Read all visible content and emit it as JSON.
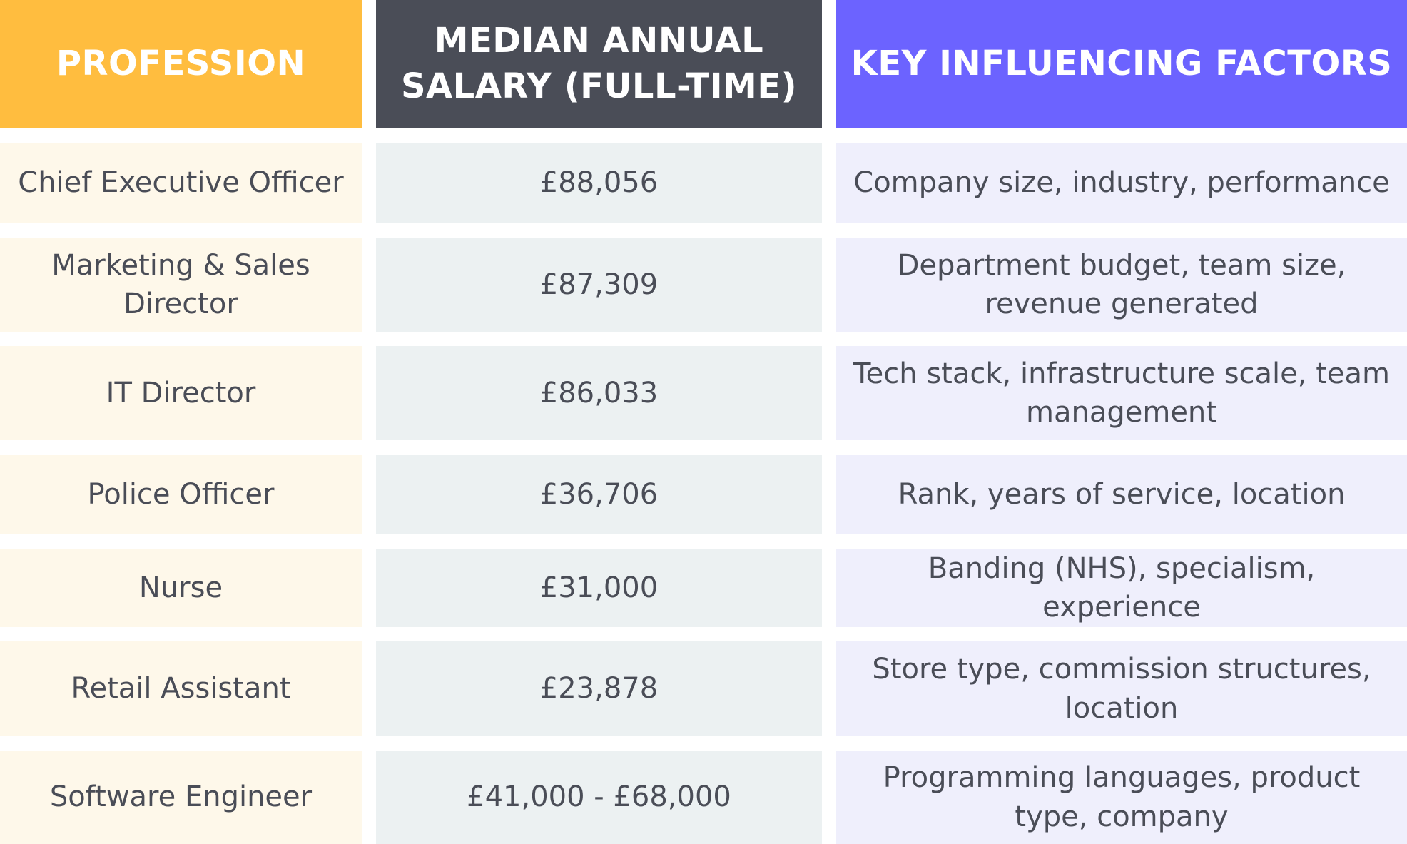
{
  "chart_data": {
    "type": "table",
    "columns": [
      "PROFESSION",
      "MEDIAN ANNUAL SALARY (FULL-TIME)",
      "KEY INFLUENCING FACTORS"
    ],
    "rows": [
      {
        "profession": "Chief Executive Officer",
        "salary": "£88,056",
        "factors": "Company size, industry, performance"
      },
      {
        "profession": "Marketing & Sales Director",
        "salary": "£87,309",
        "factors": "Department budget, team size, revenue generated"
      },
      {
        "profession": "IT Director",
        "salary": "£86,033",
        "factors": "Tech stack, infrastructure scale, team management"
      },
      {
        "profession": "Police Officer",
        "salary": "£36,706",
        "factors": "Rank, years of service, location"
      },
      {
        "profession": "Nurse",
        "salary": "£31,000",
        "factors": "Banding (NHS), specialism, experience"
      },
      {
        "profession": "Retail Assistant",
        "salary": "£23,878",
        "factors": "Store type, commission structures, location"
      },
      {
        "profession": "Software Engineer",
        "salary": "£41,000 - £68,000",
        "factors": "Programming languages, product type, company"
      }
    ]
  },
  "colors": {
    "profession_header": "#ffbd3f",
    "salary_header": "#4a4d57",
    "factors_header": "#6c63ff",
    "profession_cell": "#fef8ea",
    "salary_cell": "#ecf1f2",
    "factors_cell": "#efeffc",
    "body_text": "#4a4d57",
    "header_text": "#ffffff"
  }
}
